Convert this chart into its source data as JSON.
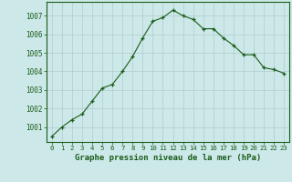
{
  "x": [
    0,
    1,
    2,
    3,
    4,
    5,
    6,
    7,
    8,
    9,
    10,
    11,
    12,
    13,
    14,
    15,
    16,
    17,
    18,
    19,
    20,
    21,
    22,
    23
  ],
  "y": [
    1000.5,
    1001.0,
    1001.4,
    1001.7,
    1002.4,
    1003.1,
    1003.3,
    1004.0,
    1004.8,
    1005.8,
    1006.7,
    1006.9,
    1007.3,
    1007.0,
    1006.8,
    1006.3,
    1006.3,
    1005.8,
    1005.4,
    1004.9,
    1004.9,
    1004.2,
    1004.1,
    1003.9
  ],
  "line_color": "#1a5c1a",
  "marker": "+",
  "marker_color": "#1a5c1a",
  "background_color": "#cce8e8",
  "grid_color": "#b0cccc",
  "xlabel": "Graphe pression niveau de la mer (hPa)",
  "xlabel_color": "#1a5c1a",
  "ylabel_ticks": [
    1001,
    1002,
    1003,
    1004,
    1005,
    1006,
    1007
  ],
  "ylim": [
    1000.2,
    1007.75
  ],
  "xlim": [
    -0.5,
    23.5
  ],
  "xticks": [
    0,
    1,
    2,
    3,
    4,
    5,
    6,
    7,
    8,
    9,
    10,
    11,
    12,
    13,
    14,
    15,
    16,
    17,
    18,
    19,
    20,
    21,
    22,
    23
  ],
  "tick_color": "#1a5c1a",
  "spine_color": "#1a5c1a"
}
